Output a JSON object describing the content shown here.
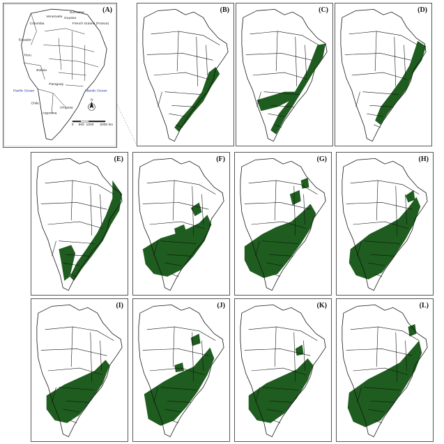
{
  "colors": {
    "range_fill": "#1f5c1f",
    "border": "#111111",
    "frame": "#555555",
    "ocean_text": "#1a2fa6"
  },
  "overview": {
    "label": "(A)",
    "ocean_left": "Pacific Ocean",
    "ocean_right": "Atlantic Ocean",
    "countries": [
      "Colombia",
      "Venezuela",
      "Guyana",
      "Suriname",
      "French Guiana (France)",
      "Ecuador",
      "Peru",
      "Bolivia",
      "Chile",
      "Paraguay",
      "Argentina",
      "Uruguay"
    ],
    "scale_ticks": [
      "0",
      "500",
      "1000",
      "2000 km"
    ],
    "north_label": "N",
    "compass_icon": "north-arrow-icon"
  },
  "panels": [
    {
      "label": "(B)",
      "fill": "coast-narrow-south"
    },
    {
      "label": "(C)",
      "fill": "coast-inland-band"
    },
    {
      "label": "(D)",
      "fill": "coast-wide-southeast"
    },
    {
      "label": "(E)",
      "fill": "coast-full-with-arm"
    },
    {
      "label": "(F)",
      "fill": "south-broad-patchy"
    },
    {
      "label": "(G)",
      "fill": "south-broad-patchy-2"
    },
    {
      "label": "(H)",
      "fill": "south-dense"
    },
    {
      "label": "(I)",
      "fill": "south-medium"
    },
    {
      "label": "(J)",
      "fill": "south-broad-patchy-3"
    },
    {
      "label": "(K)",
      "fill": "south-medium-2"
    },
    {
      "label": "(L)",
      "fill": "south-dense-2"
    }
  ]
}
